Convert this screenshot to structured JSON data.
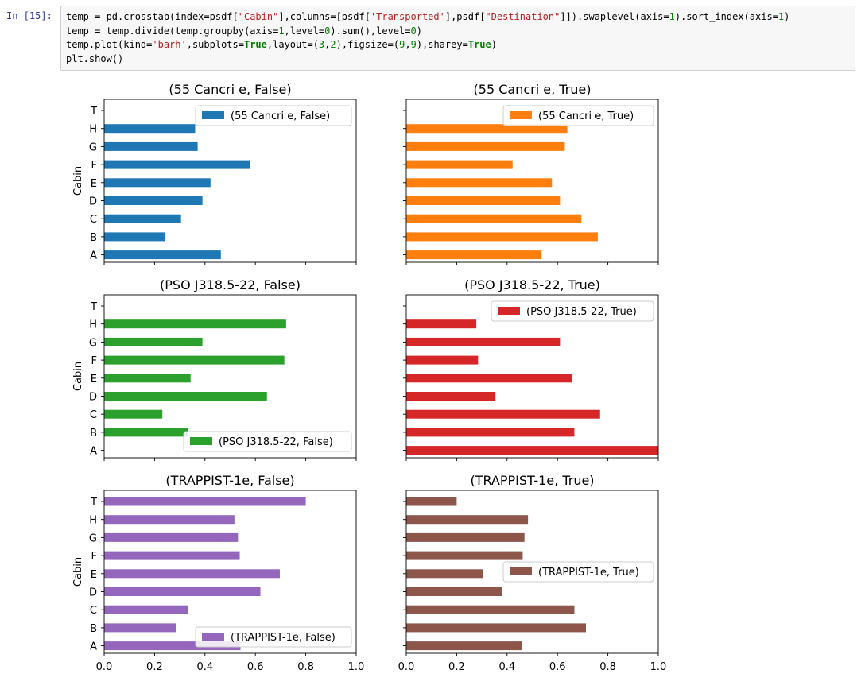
{
  "cell": {
    "prompt": "In [15]:",
    "code_lines": [
      [
        {
          "t": "temp = pd.crosstab(index=psdf["
        },
        {
          "t": "\"Cabin\"",
          "c": "str"
        },
        {
          "t": "],columns=[psdf["
        },
        {
          "t": "'Transported'",
          "c": "str"
        },
        {
          "t": "],psdf["
        },
        {
          "t": "\"Destination\"",
          "c": "str"
        },
        {
          "t": "]]).swaplevel(axis="
        },
        {
          "t": "1",
          "c": "num"
        },
        {
          "t": ").sort_index(axis="
        },
        {
          "t": "1",
          "c": "num"
        },
        {
          "t": ")"
        }
      ],
      [
        {
          "t": "temp = temp.divide(temp.groupby(axis="
        },
        {
          "t": "1",
          "c": "num"
        },
        {
          "t": ",level="
        },
        {
          "t": "0",
          "c": "num"
        },
        {
          "t": ").sum(),level="
        },
        {
          "t": "0",
          "c": "num"
        },
        {
          "t": ")"
        }
      ],
      [
        {
          "t": "temp.plot(kind="
        },
        {
          "t": "'barh'",
          "c": "str"
        },
        {
          "t": ",subplots="
        },
        {
          "t": "True",
          "c": "kw"
        },
        {
          "t": ",layout=("
        },
        {
          "t": "3",
          "c": "num"
        },
        {
          "t": ","
        },
        {
          "t": "2",
          "c": "num"
        },
        {
          "t": "),figsize=("
        },
        {
          "t": "9",
          "c": "num"
        },
        {
          "t": ","
        },
        {
          "t": "9",
          "c": "num"
        },
        {
          "t": "),sharey="
        },
        {
          "t": "True",
          "c": "kw"
        },
        {
          "t": ")"
        }
      ],
      [
        {
          "t": "plt.show()"
        }
      ]
    ]
  },
  "chart_data": {
    "type": "bar",
    "orientation": "horizontal",
    "categories": [
      "A",
      "B",
      "C",
      "D",
      "E",
      "F",
      "G",
      "H",
      "T"
    ],
    "ylabel": "Cabin",
    "xlim": [
      0,
      1.0
    ],
    "xticks": [
      "0.0",
      "0.2",
      "0.4",
      "0.6",
      "0.8",
      "1.0"
    ],
    "subplots": [
      {
        "title": "(55 Cancri e, False)",
        "legend": "(55 Cancri e, False)",
        "legend_loc": "upper right",
        "color": "#1f77b4",
        "values": [
          0.463,
          0.24,
          0.305,
          0.39,
          0.422,
          0.578,
          0.371,
          0.361,
          0
        ]
      },
      {
        "title": "(55 Cancri e, True)",
        "legend": "(55 Cancri e, True)",
        "legend_loc": "upper right",
        "color": "#ff7f0e",
        "values": [
          0.537,
          0.76,
          0.695,
          0.61,
          0.578,
          0.422,
          0.629,
          0.639,
          0
        ]
      },
      {
        "title": "(PSO J318.5-22, False)",
        "legend": "(PSO J318.5-22, False)",
        "legend_loc": "lower right",
        "color": "#2ca02c",
        "values": [
          0,
          0.333,
          0.231,
          0.646,
          0.343,
          0.715,
          0.39,
          0.722,
          0
        ]
      },
      {
        "title": "(PSO J318.5-22, True)",
        "legend": "(PSO J318.5-22, True)",
        "legend_loc": "upper right",
        "color": "#d62728",
        "values": [
          1.0,
          0.667,
          0.769,
          0.354,
          0.657,
          0.285,
          0.61,
          0.278,
          0
        ]
      },
      {
        "title": "(TRAPPIST-1e, False)",
        "legend": "(TRAPPIST-1e, False)",
        "legend_loc": "lower right",
        "color": "#9467bd",
        "values": [
          0.541,
          0.287,
          0.333,
          0.62,
          0.697,
          0.538,
          0.531,
          0.517,
          0.8
        ]
      },
      {
        "title": "(TRAPPIST-1e, True)",
        "legend": "(TRAPPIST-1e, True)",
        "legend_loc": "center right",
        "color": "#8c564b",
        "values": [
          0.459,
          0.713,
          0.667,
          0.38,
          0.303,
          0.462,
          0.469,
          0.483,
          0.2
        ]
      }
    ]
  }
}
